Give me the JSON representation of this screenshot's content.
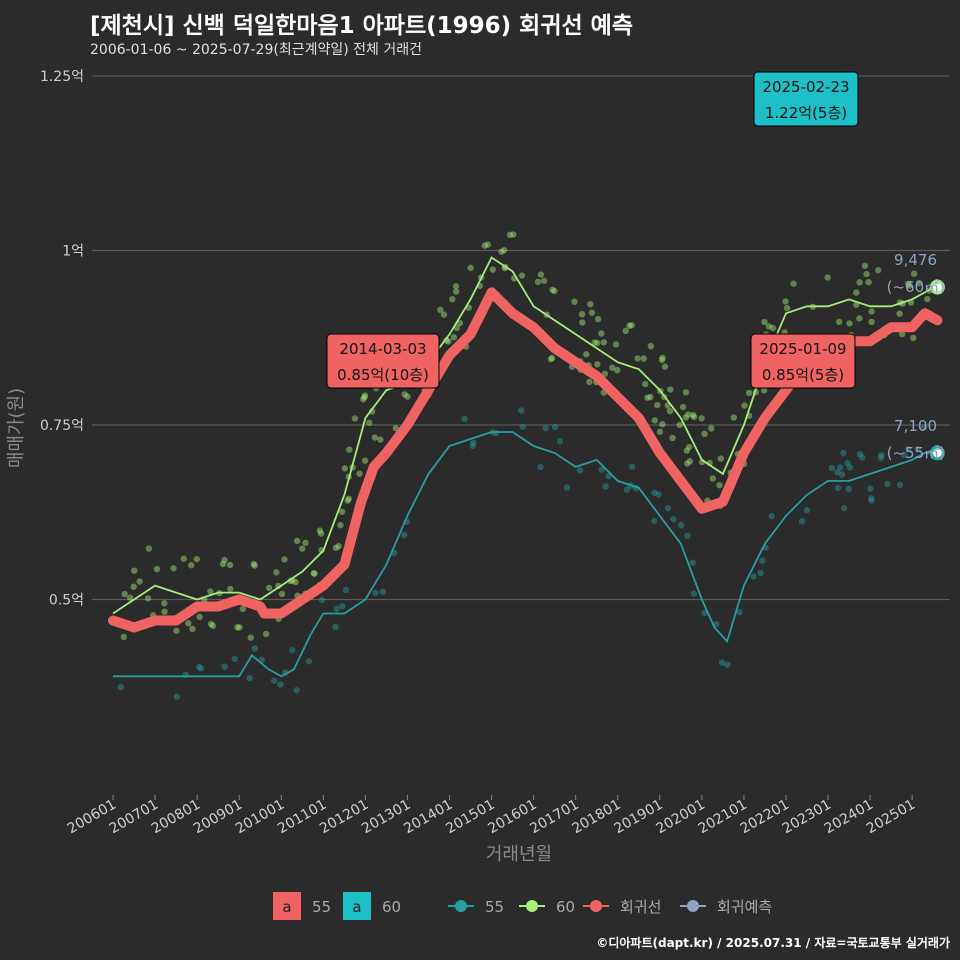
{
  "header": {
    "title": "[제천시] 신백 덕일한마음1 아파트(1996) 회귀선 예측",
    "subtitle": "2006-01-06 ~ 2025-07-29(최근계약일) 전체 거래건"
  },
  "footer": {
    "credit": "©디아파트(dapt.kr) / 2025.07.31 / 자료=국토교통부 실거래가"
  },
  "chart_data": {
    "type": "line",
    "title": "[제천시] 신백 덕일한마음1 아파트(1996) 회귀선 예측",
    "xlabel": "거래년월",
    "ylabel": "매매가(원)",
    "ylim": [
      0.22,
      1.27
    ],
    "xlim": [
      2005.5,
      2025.9
    ],
    "y_ticks": [
      {
        "value": 0.5,
        "label": "0.5억"
      },
      {
        "value": 0.75,
        "label": "0.75억"
      },
      {
        "value": 1.0,
        "label": "1억"
      },
      {
        "value": 1.25,
        "label": "1.25억"
      }
    ],
    "x_ticks": [
      {
        "value": 2006.0,
        "label": "200601"
      },
      {
        "value": 2007.0,
        "label": "200701"
      },
      {
        "value": 2008.0,
        "label": "200801"
      },
      {
        "value": 2009.0,
        "label": "200901"
      },
      {
        "value": 2010.0,
        "label": "201001"
      },
      {
        "value": 2011.0,
        "label": "201101"
      },
      {
        "value": 2012.0,
        "label": "201201"
      },
      {
        "value": 2013.0,
        "label": "201301"
      },
      {
        "value": 2014.0,
        "label": "201401"
      },
      {
        "value": 2015.0,
        "label": "201501"
      },
      {
        "value": 2016.0,
        "label": "201601"
      },
      {
        "value": 2017.0,
        "label": "201701"
      },
      {
        "value": 2018.0,
        "label": "201801"
      },
      {
        "value": 2019.0,
        "label": "201901"
      },
      {
        "value": 2020.0,
        "label": "202001"
      },
      {
        "value": 2021.0,
        "label": "202101"
      },
      {
        "value": 2022.0,
        "label": "202201"
      },
      {
        "value": 2023.0,
        "label": "202301"
      },
      {
        "value": 2024.0,
        "label": "202401"
      },
      {
        "value": 2025.0,
        "label": "202501"
      }
    ],
    "colors": {
      "s55": "#2a9da0",
      "s60": "#a6ee7a",
      "regression": "#f06363",
      "prediction": "#8fa3c6"
    },
    "series": [
      {
        "name": "55",
        "color": "#2a9da0",
        "x": [
          2006.0,
          2007.0,
          2008.0,
          2009.0,
          2009.3,
          2009.7,
          2010.0,
          2010.3,
          2010.7,
          2011.0,
          2011.5,
          2012.0,
          2012.5,
          2013.0,
          2013.5,
          2014.0,
          2014.5,
          2015.0,
          2015.5,
          2016.0,
          2016.5,
          2017.0,
          2017.5,
          2018.0,
          2018.5,
          2019.0,
          2019.5,
          2020.0,
          2020.3,
          2020.6,
          2021.0,
          2021.5,
          2022.0,
          2022.5,
          2023.0,
          2023.5,
          2024.0,
          2024.5,
          2025.0,
          2025.3,
          2025.6
        ],
        "y": [
          0.39,
          0.39,
          0.39,
          0.39,
          0.42,
          0.4,
          0.39,
          0.4,
          0.45,
          0.48,
          0.48,
          0.5,
          0.55,
          0.62,
          0.68,
          0.72,
          0.73,
          0.74,
          0.74,
          0.72,
          0.71,
          0.69,
          0.7,
          0.67,
          0.66,
          0.62,
          0.58,
          0.5,
          0.46,
          0.44,
          0.52,
          0.58,
          0.62,
          0.65,
          0.67,
          0.67,
          0.68,
          0.69,
          0.7,
          0.71,
          0.71
        ]
      },
      {
        "name": "60",
        "color": "#a6ee7a",
        "x": [
          2006.0,
          2006.5,
          2007.0,
          2007.5,
          2008.0,
          2008.5,
          2009.0,
          2009.5,
          2010.0,
          2010.5,
          2011.0,
          2011.5,
          2012.0,
          2012.5,
          2013.0,
          2013.5,
          2014.0,
          2014.5,
          2015.0,
          2015.5,
          2016.0,
          2016.5,
          2017.0,
          2017.5,
          2018.0,
          2018.5,
          2019.0,
          2019.5,
          2020.0,
          2020.5,
          2021.0,
          2021.5,
          2022.0,
          2022.5,
          2023.0,
          2023.5,
          2024.0,
          2024.5,
          2025.0,
          2025.6
        ],
        "y": [
          0.48,
          0.5,
          0.52,
          0.51,
          0.5,
          0.51,
          0.51,
          0.5,
          0.52,
          0.54,
          0.57,
          0.65,
          0.76,
          0.8,
          0.81,
          0.84,
          0.88,
          0.93,
          0.99,
          0.97,
          0.92,
          0.9,
          0.88,
          0.86,
          0.84,
          0.83,
          0.8,
          0.76,
          0.7,
          0.68,
          0.75,
          0.84,
          0.91,
          0.92,
          0.92,
          0.93,
          0.92,
          0.92,
          0.93,
          0.95
        ]
      },
      {
        "name": "회귀선",
        "color": "#f06363",
        "x": [
          2006.0,
          2006.5,
          2007.0,
          2007.5,
          2008.0,
          2008.5,
          2009.0,
          2009.5,
          2009.6,
          2010.0,
          2010.5,
          2011.0,
          2011.5,
          2011.9,
          2012.2,
          2012.5,
          2013.0,
          2013.5,
          2014.0,
          2014.5,
          2015.0,
          2015.5,
          2016.0,
          2016.5,
          2017.0,
          2017.5,
          2018.0,
          2018.5,
          2019.0,
          2019.5,
          2020.0,
          2020.5,
          2021.0,
          2021.5,
          2022.0,
          2022.5,
          2023.0,
          2023.5,
          2024.0,
          2024.5,
          2025.0,
          2025.3,
          2025.6
        ],
        "y": [
          0.47,
          0.46,
          0.47,
          0.47,
          0.49,
          0.49,
          0.5,
          0.49,
          0.48,
          0.48,
          0.5,
          0.52,
          0.55,
          0.64,
          0.69,
          0.71,
          0.75,
          0.8,
          0.85,
          0.88,
          0.94,
          0.91,
          0.89,
          0.86,
          0.84,
          0.82,
          0.79,
          0.76,
          0.71,
          0.67,
          0.63,
          0.64,
          0.71,
          0.76,
          0.8,
          0.84,
          0.87,
          0.87,
          0.87,
          0.89,
          0.89,
          0.91,
          0.9
        ]
      },
      {
        "name": "회귀예측",
        "color": "#8fa3c6",
        "x": [],
        "y": []
      }
    ],
    "end_points": [
      {
        "series": "60",
        "x": 2025.6,
        "y": 0.9476,
        "label_value": "9,476",
        "label_area": "(~60㎡)"
      },
      {
        "series": "55",
        "x": 2025.6,
        "y": 0.71,
        "label_value": "7,100",
        "label_area": "(~55㎡)"
      }
    ],
    "annotations": [
      {
        "x": 2014.0,
        "y": 0.85,
        "date": "2014-03-03",
        "text": "0.85억(10층)",
        "color": "#f06363"
      },
      {
        "x": 2025.0,
        "y": 0.85,
        "date": "2025-01-09",
        "text": "0.85억(5층)",
        "color": "#f06363"
      },
      {
        "x": 2025.0,
        "y": 1.22,
        "date": "2025-02-23",
        "text": "1.22억(5층)",
        "color": "#1ec0c8"
      }
    ],
    "legend": {
      "position": "bottom",
      "box_items": [
        {
          "letter": "a",
          "label": "55",
          "color": "#f06363"
        },
        {
          "letter": "a",
          "label": "60",
          "color": "#1ec0c8"
        }
      ],
      "line_items": [
        {
          "label": "55",
          "color": "#2a9da0"
        },
        {
          "label": "60",
          "color": "#a6ee7a"
        },
        {
          "label": "회귀선",
          "color": "#f06363"
        },
        {
          "label": "회귀예측",
          "color": "#8fa3c6"
        }
      ]
    },
    "grid": true
  }
}
